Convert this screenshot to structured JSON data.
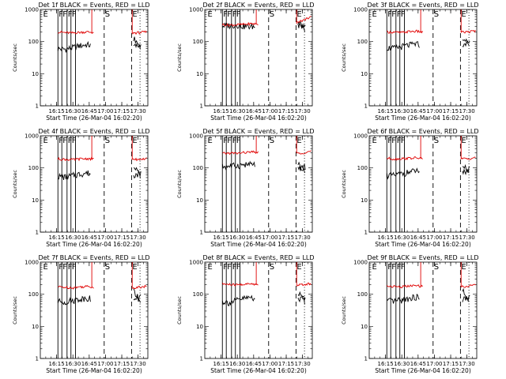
{
  "chart_data": [
    {
      "type": "line",
      "title": "Det 1f  BLACK = Events, RED = LLD",
      "xlabel": "Start Time (26-Mar-04 16:02:20)",
      "ylabel": "Counts/sec",
      "xlim": [
        16.0,
        17.65
      ],
      "yscale": "log",
      "ylim": [
        1,
        1000
      ],
      "x_tick_labels": [
        "16:15",
        "16:30",
        "16:45",
        "17:00",
        "17:15",
        "17:30"
      ],
      "y_tick_labels": [
        "1",
        "10",
        "100",
        "1000"
      ],
      "flag_labels": [
        "E",
        "F",
        "F",
        "F",
        "F",
        "S",
        "E"
      ],
      "series": [
        {
          "name": "Events",
          "color": "#000000",
          "values": [
            60,
            58,
            65,
            75,
            80,
            70,
            90,
            100,
            85,
            80,
            70,
            75,
            130
          ]
        },
        {
          "name": "LLD",
          "color": "#e00000",
          "values": [
            200,
            190,
            185,
            195,
            200,
            190,
            185,
            200,
            190,
            180,
            185,
            190,
            200
          ]
        }
      ]
    },
    {
      "type": "line",
      "title": "Det 2f  BLACK = Events, RED = LLD",
      "xlabel": "Start Time (26-Mar-04 16:02:20)",
      "ylabel": "Counts/sec",
      "xlim": [
        16.0,
        17.65
      ],
      "yscale": "log",
      "ylim": [
        1,
        1000
      ],
      "x_tick_labels": [
        "16:15",
        "16:30",
        "16:45",
        "17:00",
        "17:15",
        "17:30"
      ],
      "y_tick_labels": [
        "1",
        "10",
        "100",
        "1000"
      ],
      "flag_labels": [
        "E",
        "F",
        "F",
        "F",
        "F",
        "S",
        "E"
      ],
      "series": [
        {
          "name": "Events",
          "color": "#000000",
          "values": [
            310,
            320,
            330,
            300,
            290,
            310,
            320,
            300,
            310,
            330,
            320,
            350,
            400
          ]
        },
        {
          "name": "LLD",
          "color": "#e00000",
          "values": [
            340,
            330,
            335,
            345,
            360,
            350,
            355,
            370,
            380,
            400,
            420,
            460,
            600
          ]
        }
      ]
    },
    {
      "type": "line",
      "title": "Det 3f  BLACK = Events, RED = LLD",
      "xlabel": "Start Time (26-Mar-04 16:02:20)",
      "ylabel": "Counts/sec",
      "xlim": [
        16.0,
        17.65
      ],
      "yscale": "log",
      "ylim": [
        1,
        1000
      ],
      "x_tick_labels": [
        "16:15",
        "16:30",
        "16:45",
        "17:00",
        "17:15",
        "17:30"
      ],
      "y_tick_labels": [
        "1",
        "10",
        "100",
        "1000"
      ],
      "flag_labels": [
        "E",
        "F",
        "F",
        "F",
        "F",
        "S",
        "E"
      ],
      "series": [
        {
          "name": "Events",
          "color": "#000000",
          "values": [
            65,
            62,
            70,
            78,
            85,
            75,
            95,
            105,
            90,
            85,
            80,
            90,
            140
          ]
        },
        {
          "name": "LLD",
          "color": "#e00000",
          "values": [
            200,
            195,
            190,
            205,
            210,
            195,
            190,
            210,
            200,
            190,
            195,
            200,
            215
          ]
        }
      ]
    },
    {
      "type": "line",
      "title": "Det 4f  BLACK = Events, RED = LLD",
      "xlabel": "Start Time (26-Mar-04 16:02:20)",
      "ylabel": "Counts/sec",
      "xlim": [
        16.0,
        17.65
      ],
      "yscale": "log",
      "ylim": [
        1,
        1000
      ],
      "x_tick_labels": [
        "16:15",
        "16:30",
        "16:45",
        "17:00",
        "17:15",
        "17:30"
      ],
      "y_tick_labels": [
        "1",
        "10",
        "100",
        "1000"
      ],
      "flag_labels": [
        "E",
        "F",
        "F",
        "F",
        "F",
        "S",
        "E"
      ],
      "series": [
        {
          "name": "Events",
          "color": "#000000",
          "values": [
            55,
            52,
            58,
            65,
            70,
            62,
            75,
            85,
            72,
            68,
            60,
            65,
            110
          ]
        },
        {
          "name": "LLD",
          "color": "#e00000",
          "values": [
            190,
            185,
            180,
            190,
            195,
            185,
            180,
            195,
            185,
            175,
            180,
            185,
            195
          ]
        }
      ]
    },
    {
      "type": "line",
      "title": "Det 5f  BLACK = Events, RED = LLD",
      "xlabel": "Start Time (26-Mar-04 16:02:20)",
      "ylabel": "Counts/sec",
      "xlim": [
        16.0,
        17.65
      ],
      "yscale": "log",
      "ylim": [
        1,
        1000
      ],
      "x_tick_labels": [
        "16:15",
        "16:30",
        "16:45",
        "17:00",
        "17:15",
        "17:30"
      ],
      "y_tick_labels": [
        "1",
        "10",
        "100",
        "1000"
      ],
      "flag_labels": [
        "E",
        "F",
        "F",
        "F",
        "F",
        "S",
        "E"
      ],
      "series": [
        {
          "name": "Events",
          "color": "#000000",
          "values": [
            110,
            115,
            120,
            125,
            130,
            125,
            135,
            140,
            120,
            110,
            100,
            105,
            140
          ]
        },
        {
          "name": "LLD",
          "color": "#e00000",
          "values": [
            280,
            290,
            285,
            300,
            310,
            305,
            300,
            320,
            310,
            290,
            280,
            300,
            330
          ]
        }
      ]
    },
    {
      "type": "line",
      "title": "Det 6f  BLACK = Events, RED = LLD",
      "xlabel": "Start Time (26-Mar-04 16:02:20)",
      "ylabel": "Counts/sec",
      "xlim": [
        16.0,
        17.65
      ],
      "yscale": "log",
      "ylim": [
        1,
        1000
      ],
      "x_tick_labels": [
        "16:15",
        "16:30",
        "16:45",
        "17:00",
        "17:15",
        "17:30"
      ],
      "y_tick_labels": [
        "1",
        "10",
        "100",
        "1000"
      ],
      "flag_labels": [
        "E",
        "F",
        "F",
        "F",
        "F",
        "S",
        "E"
      ],
      "series": [
        {
          "name": "Events",
          "color": "#000000",
          "values": [
            60,
            58,
            66,
            74,
            82,
            72,
            92,
            102,
            88,
            82,
            75,
            82,
            135
          ]
        },
        {
          "name": "LLD",
          "color": "#e00000",
          "values": [
            200,
            190,
            195,
            200,
            205,
            195,
            190,
            205,
            195,
            185,
            190,
            195,
            210
          ]
        }
      ]
    },
    {
      "type": "line",
      "title": "Det 7f  BLACK = Events, RED = LLD",
      "xlabel": "Start Time (26-Mar-04 16:02:20)",
      "ylabel": "Counts/sec",
      "xlim": [
        16.0,
        17.65
      ],
      "yscale": "log",
      "ylim": [
        1,
        1000
      ],
      "x_tick_labels": [
        "16:15",
        "16:30",
        "16:45",
        "17:00",
        "17:15",
        "17:30"
      ],
      "y_tick_labels": [
        "1",
        "10",
        "100",
        "1000"
      ],
      "flag_labels": [
        "E",
        "F",
        "F",
        "F",
        "F",
        "S",
        "E"
      ],
      "series": [
        {
          "name": "Events",
          "color": "#000000",
          "values": [
            60,
            58,
            64,
            72,
            78,
            70,
            88,
            95,
            82,
            78,
            70,
            76,
            125
          ]
        },
        {
          "name": "LLD",
          "color": "#e00000",
          "values": [
            170,
            165,
            160,
            170,
            175,
            165,
            160,
            175,
            165,
            158,
            162,
            168,
            180
          ]
        }
      ]
    },
    {
      "type": "line",
      "title": "Det 8f  BLACK = Events, RED = LLD",
      "xlabel": "Start Time (26-Mar-04 16:02:20)",
      "ylabel": "Counts/sec",
      "xlim": [
        16.0,
        17.65
      ],
      "yscale": "log",
      "ylim": [
        1,
        1000
      ],
      "x_tick_labels": [
        "16:15",
        "16:30",
        "16:45",
        "17:00",
        "17:15",
        "17:30"
      ],
      "y_tick_labels": [
        "1",
        "10",
        "100",
        "1000"
      ],
      "flag_labels": [
        "E",
        "F",
        "F",
        "F",
        "F",
        "S",
        "E"
      ],
      "series": [
        {
          "name": "Events",
          "color": "#000000",
          "values": [
            60,
            55,
            65,
            75,
            80,
            72,
            90,
            95,
            82,
            75,
            65,
            70,
            115
          ]
        },
        {
          "name": "LLD",
          "color": "#e00000",
          "values": [
            210,
            200,
            195,
            205,
            210,
            200,
            195,
            210,
            200,
            190,
            195,
            200,
            215
          ]
        }
      ]
    },
    {
      "type": "line",
      "title": "Det 9f  BLACK = Events, RED = LLD",
      "xlabel": "Start Time (26-Mar-04 16:02:20)",
      "ylabel": "Counts/sec",
      "xlim": [
        16.0,
        17.65
      ],
      "yscale": "log",
      "ylim": [
        1,
        1000
      ],
      "x_tick_labels": [
        "16:15",
        "16:30",
        "16:45",
        "17:00",
        "17:15",
        "17:30"
      ],
      "y_tick_labels": [
        "1",
        "10",
        "100",
        "1000"
      ],
      "flag_labels": [
        "E",
        "F",
        "F",
        "F",
        "F",
        "S",
        "E"
      ],
      "series": [
        {
          "name": "Events",
          "color": "#000000",
          "values": [
            62,
            60,
            66,
            76,
            82,
            72,
            92,
            100,
            86,
            80,
            72,
            78,
            130
          ]
        },
        {
          "name": "LLD",
          "color": "#e00000",
          "values": [
            180,
            175,
            170,
            180,
            185,
            175,
            170,
            185,
            175,
            168,
            172,
            178,
            190
          ]
        }
      ]
    }
  ]
}
